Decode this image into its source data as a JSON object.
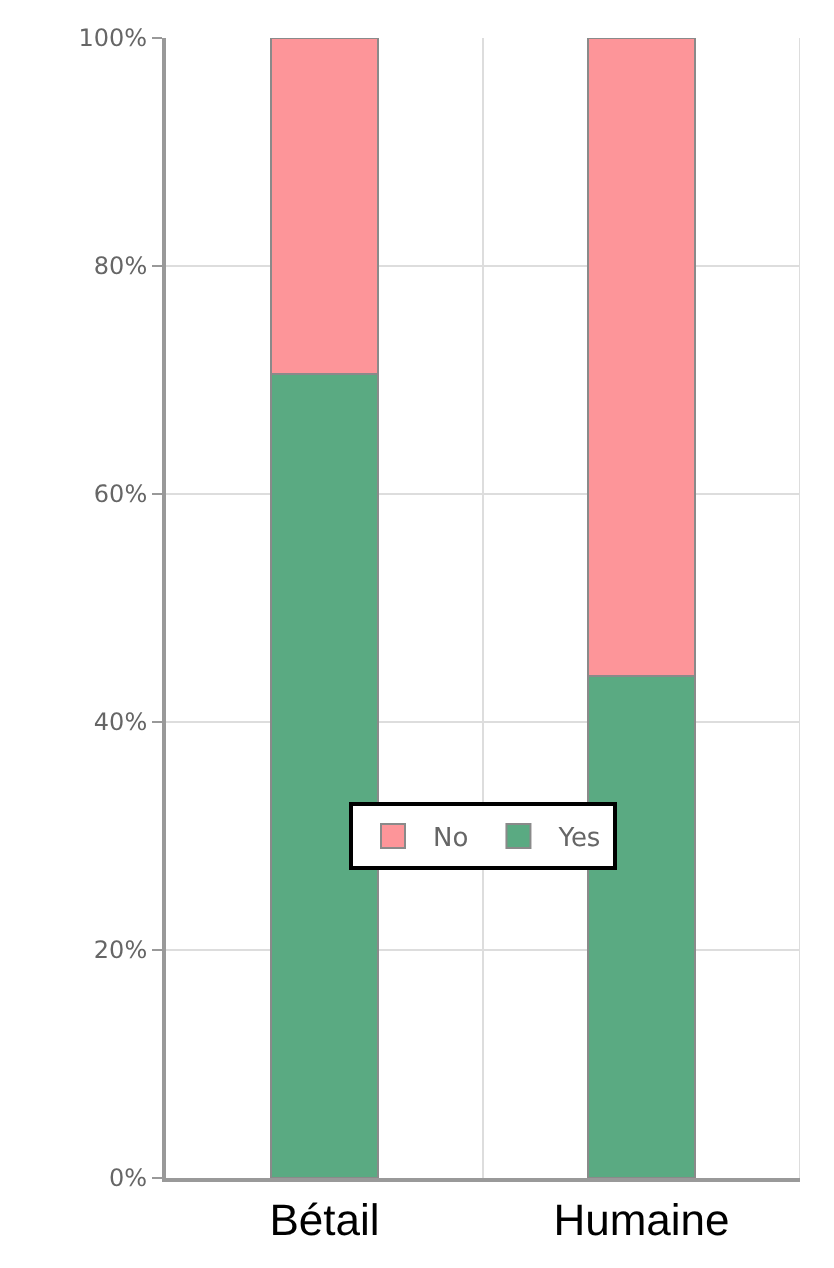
{
  "chart_data": {
    "type": "bar",
    "stacked": true,
    "categories": [
      "Bétail",
      "Humaine"
    ],
    "series": [
      {
        "name": "Yes",
        "color": "#5aaa82",
        "values": [
          70.5,
          44
        ]
      },
      {
        "name": "No",
        "color": "#fd9599",
        "values": [
          29.5,
          56
        ]
      }
    ],
    "ylim": [
      0,
      100
    ],
    "yticks": [
      {
        "value": 0,
        "label": "0%"
      },
      {
        "value": 20,
        "label": "20%"
      },
      {
        "value": 40,
        "label": "40%"
      },
      {
        "value": 60,
        "label": "60%"
      },
      {
        "value": 80,
        "label": "80%"
      },
      {
        "value": 100,
        "label": "100%"
      }
    ],
    "grid": true,
    "legend": "bottom"
  }
}
